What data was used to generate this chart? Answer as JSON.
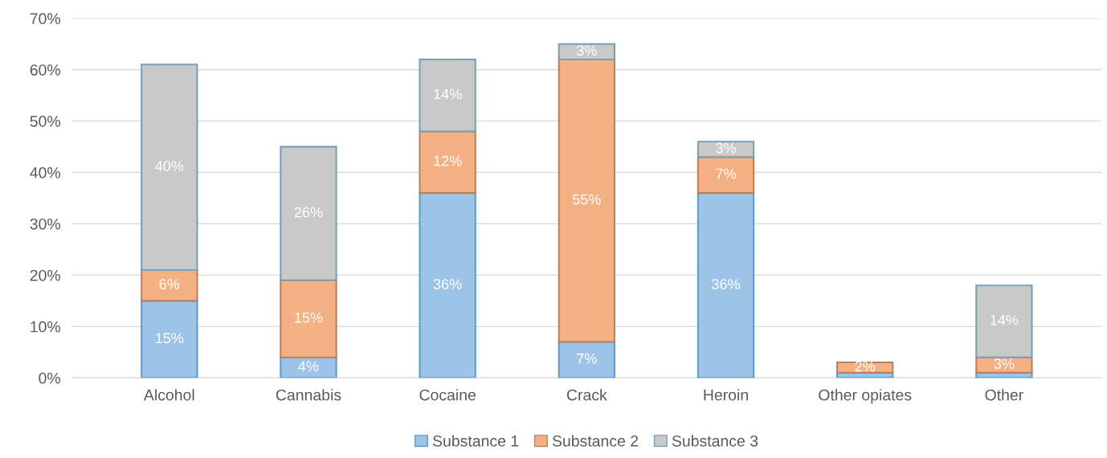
{
  "chart_data": {
    "type": "bar",
    "stacked": true,
    "categories": [
      "Alcohol",
      "Cannabis",
      "Cocaine",
      "Crack",
      "Heroin",
      "Other opiates",
      "Other"
    ],
    "series": [
      {
        "name": "Substance 1",
        "color": "#9dc3e6",
        "values": [
          15,
          4,
          36,
          7,
          36,
          1,
          1
        ],
        "value_labels": [
          "15%",
          "4%",
          "36%",
          "7%",
          "36%",
          null,
          null
        ]
      },
      {
        "name": "Substance 2",
        "color": "#f4b183",
        "values": [
          6,
          15,
          12,
          55,
          7,
          2,
          3
        ],
        "value_labels": [
          "6%",
          "15%",
          "12%",
          "55%",
          "7%",
          "2%",
          "3%"
        ]
      },
      {
        "name": "Substance 3",
        "color": "#c9c9c9",
        "values": [
          40,
          26,
          14,
          3,
          3,
          null,
          14
        ],
        "value_labels": [
          "40%",
          "26%",
          "14%",
          "3%",
          "3%",
          null,
          "14%"
        ]
      }
    ],
    "ylim": [
      0,
      70
    ],
    "yticks": [
      {
        "value": 0,
        "label": "0%"
      },
      {
        "value": 10,
        "label": "10%"
      },
      {
        "value": 20,
        "label": "20%"
      },
      {
        "value": 30,
        "label": "30%"
      },
      {
        "value": 40,
        "label": "40%"
      },
      {
        "value": 50,
        "label": "50%"
      },
      {
        "value": 60,
        "label": "60%"
      },
      {
        "value": 70,
        "label": "70%"
      }
    ],
    "grid": "y",
    "legend": "bottom"
  }
}
